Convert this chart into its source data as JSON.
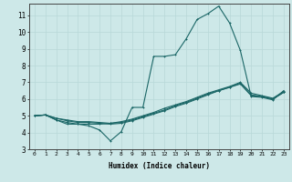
{
  "xlabel": "Humidex (Indice chaleur)",
  "ylabel": "",
  "bg_color": "#cde8e8",
  "grid_color": "#b8d8d8",
  "line_color": "#1a6666",
  "xlim": [
    -0.5,
    23.5
  ],
  "ylim": [
    3.0,
    11.7
  ],
  "yticks": [
    3,
    4,
    5,
    6,
    7,
    8,
    9,
    10,
    11
  ],
  "xticks": [
    0,
    1,
    2,
    3,
    4,
    5,
    6,
    7,
    8,
    9,
    10,
    11,
    12,
    13,
    14,
    15,
    16,
    17,
    18,
    19,
    20,
    21,
    22,
    23
  ],
  "line1_x": [
    0,
    1,
    2,
    3,
    4,
    5,
    6,
    7,
    8,
    9,
    10,
    11,
    12,
    13,
    14,
    15,
    16,
    17,
    18,
    19,
    20,
    21,
    22,
    23
  ],
  "line1_y": [
    5.0,
    5.05,
    4.75,
    4.5,
    4.5,
    4.4,
    4.15,
    3.5,
    4.05,
    5.5,
    5.5,
    8.55,
    8.55,
    8.65,
    9.6,
    10.75,
    11.1,
    11.55,
    10.55,
    8.9,
    6.15,
    6.1,
    5.95,
    6.5
  ],
  "line2_x": [
    0,
    1,
    2,
    3,
    4,
    5,
    6,
    7,
    8,
    9,
    10,
    11,
    12,
    13,
    14,
    15,
    16,
    17,
    18,
    19,
    20,
    21,
    22,
    23
  ],
  "line2_y": [
    5.0,
    5.05,
    4.85,
    4.7,
    4.6,
    4.6,
    4.55,
    4.5,
    4.55,
    4.7,
    4.9,
    5.1,
    5.3,
    5.55,
    5.75,
    6.0,
    6.25,
    6.5,
    6.7,
    6.9,
    6.2,
    6.15,
    6.0,
    6.4
  ],
  "line3_x": [
    0,
    1,
    2,
    3,
    4,
    5,
    6,
    7,
    8,
    9,
    10,
    11,
    12,
    13,
    14,
    15,
    16,
    17,
    18,
    19,
    20,
    21,
    22,
    23
  ],
  "line3_y": [
    5.0,
    5.05,
    4.75,
    4.6,
    4.5,
    4.5,
    4.5,
    4.55,
    4.65,
    4.8,
    5.0,
    5.2,
    5.45,
    5.65,
    5.85,
    6.1,
    6.35,
    6.55,
    6.75,
    7.0,
    6.35,
    6.2,
    6.05,
    6.45
  ],
  "line4_x": [
    0,
    1,
    2,
    3,
    4,
    5,
    6,
    7,
    8,
    9,
    10,
    11,
    12,
    13,
    14,
    15,
    16,
    17,
    18,
    19,
    20,
    21,
    22,
    23
  ],
  "line4_y": [
    5.0,
    5.05,
    4.85,
    4.75,
    4.65,
    4.65,
    4.6,
    4.55,
    4.6,
    4.75,
    4.95,
    5.15,
    5.35,
    5.6,
    5.8,
    6.05,
    6.3,
    6.5,
    6.7,
    6.95,
    6.25,
    6.15,
    6.0,
    6.4
  ]
}
